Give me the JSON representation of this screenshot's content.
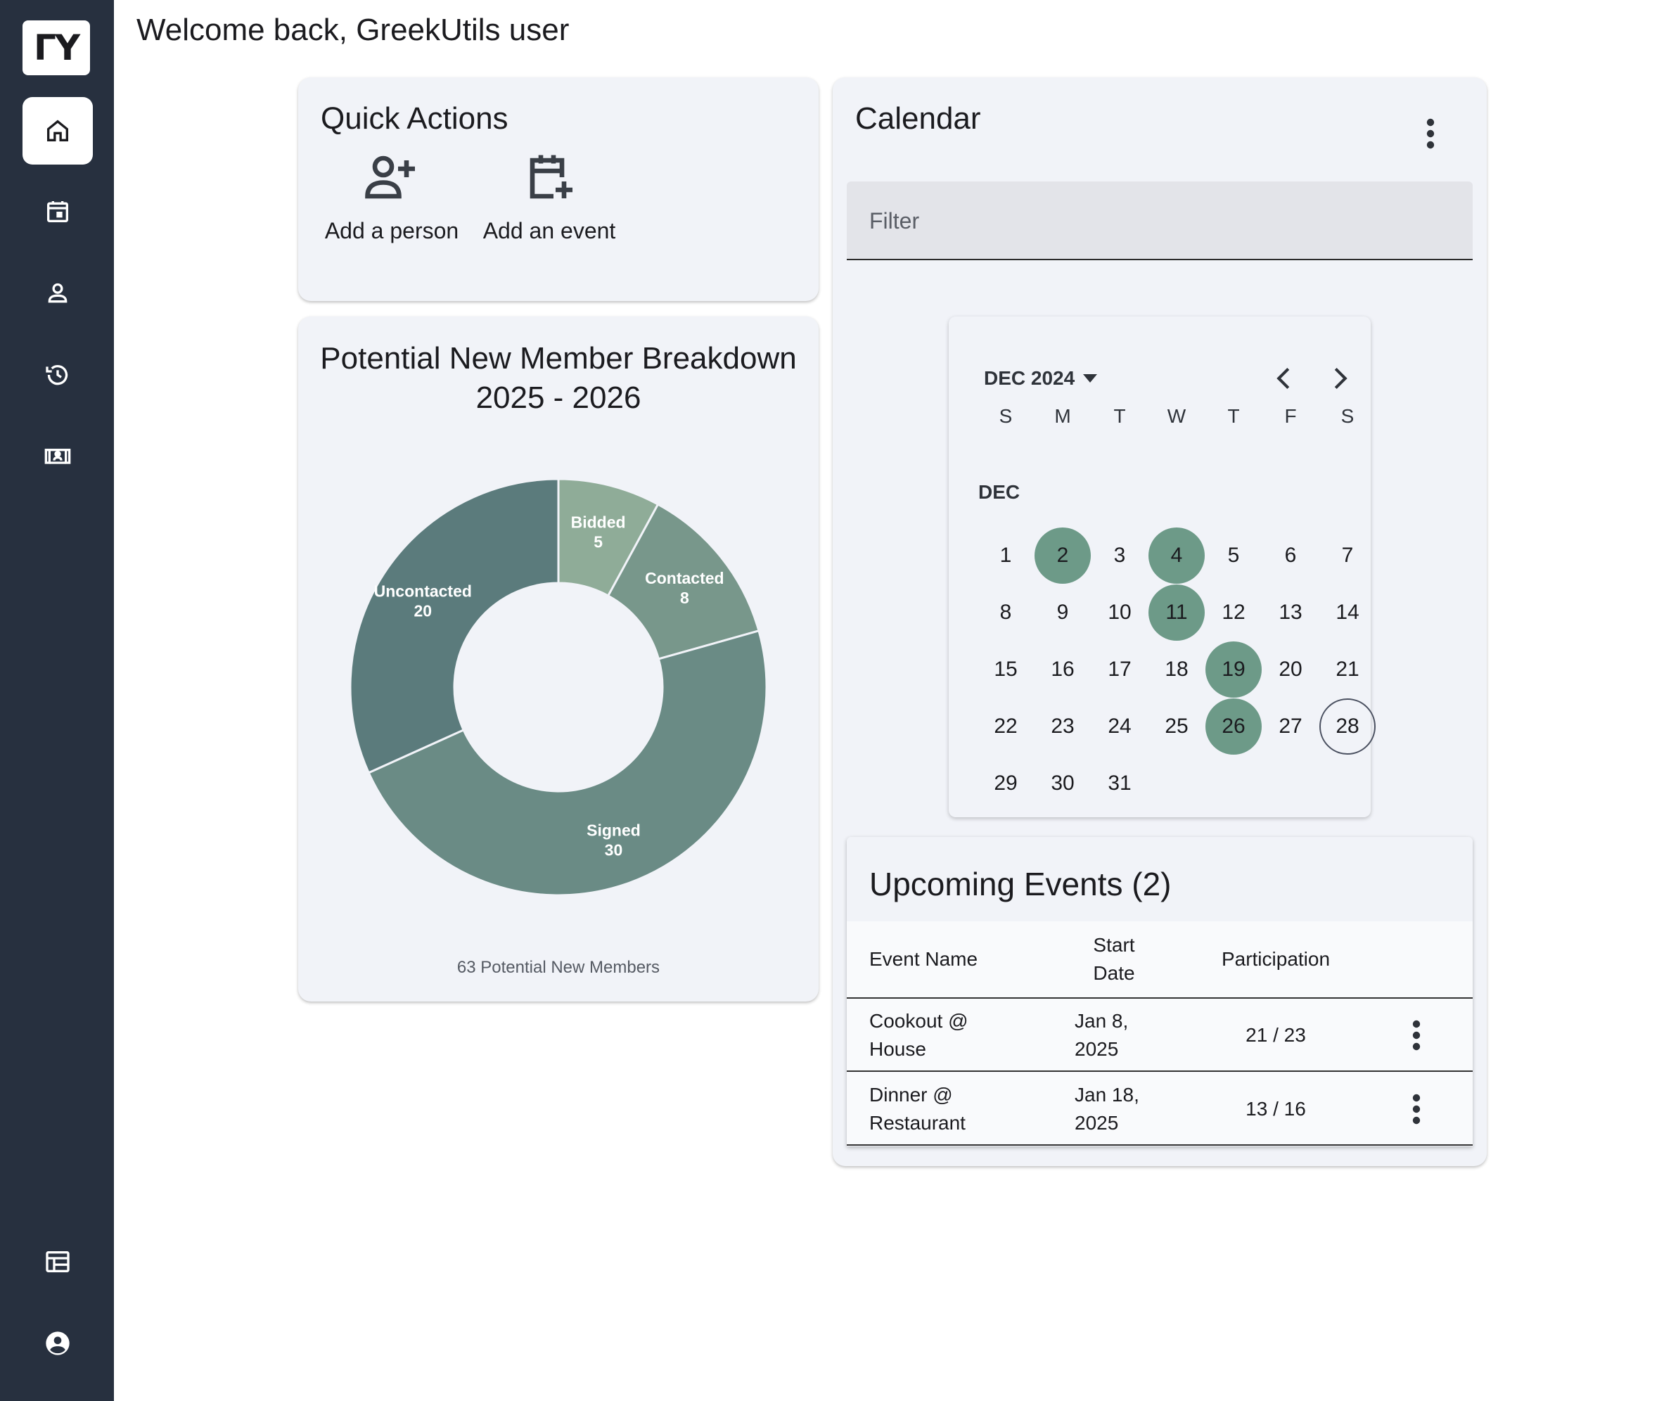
{
  "sidebar": {
    "logo": "ΓY",
    "items": [
      {
        "icon": "home-icon",
        "active": true
      },
      {
        "icon": "calendar-icon",
        "active": false
      },
      {
        "icon": "person-icon",
        "active": false
      },
      {
        "icon": "history-icon",
        "active": false
      },
      {
        "icon": "meeting-room-icon",
        "active": false
      }
    ],
    "bottom": [
      {
        "icon": "table-layout-icon"
      },
      {
        "icon": "account-circle-icon"
      }
    ]
  },
  "header": {
    "welcome": "Welcome back, GreekUtils user"
  },
  "quick_actions": {
    "title": "Quick Actions",
    "add_person": "Add a person",
    "add_event": "Add an event"
  },
  "chart_card": {
    "title_line1": "Potential New Member Breakdown",
    "title_line2": "2025 - 2026",
    "footer": "63 Potential New Members"
  },
  "chart_data": {
    "type": "pie",
    "title": "Potential New Member Breakdown 2025 - 2026",
    "series": [
      {
        "name": "Bidded",
        "value": 5,
        "color": "#8fac98"
      },
      {
        "name": "Contacted",
        "value": 8,
        "color": "#78978b"
      },
      {
        "name": "Signed",
        "value": 30,
        "color": "#6a8b85"
      },
      {
        "name": "Uncontacted",
        "value": 20,
        "color": "#5b7b7c"
      }
    ],
    "total": 63
  },
  "calendar": {
    "title": "Calendar",
    "filter_placeholder": "Filter",
    "month_label": "DEC 2024",
    "section_label": "DEC",
    "weekdays": [
      "S",
      "M",
      "T",
      "W",
      "T",
      "F",
      "S"
    ],
    "first_weekday": 0,
    "days_in_month": 31,
    "event_days": [
      2,
      4,
      11,
      19,
      26
    ],
    "today": 28,
    "event_color": "#6d9a88"
  },
  "events": {
    "title": "Upcoming Events (2)",
    "headers": {
      "name": "Event Name",
      "start_line1": "Start",
      "start_line2": "Date",
      "participation": "Participation"
    },
    "rows": [
      {
        "name_line1": "Cookout @",
        "name_line2": "House",
        "date_line1": "Jan 8,",
        "date_line2": "2025",
        "participation": "21 / 23"
      },
      {
        "name_line1": "Dinner @",
        "name_line2": "Restaurant",
        "date_line1": "Jan 18,",
        "date_line2": "2025",
        "participation": "13 / 16"
      }
    ]
  }
}
